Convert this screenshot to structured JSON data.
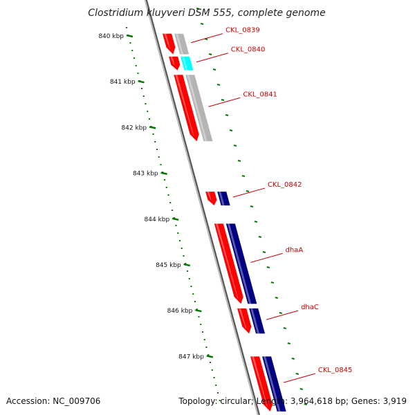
{
  "title": "Clostridium kluyveri DSM 555, complete genome",
  "footer": {
    "accession": "Accession: NC_009706",
    "summary": "Topology: circular; Length: 3,964,618 bp; Genes: 3,919"
  },
  "ruler_labels": [
    "840 kbp",
    "841 kbp",
    "842 kbp",
    "843 kbp",
    "844 kbp",
    "845 kbp",
    "846 kbp",
    "847 kbp"
  ],
  "colors": {
    "cds": "#ff0000",
    "gc_low": "#00ffff",
    "gc_neutral": "#b4b4b4",
    "gc_high": "#000080",
    "ruler": "#007700",
    "backbone": "#888888",
    "label": "#cc0000"
  },
  "genes": [
    {
      "name": "CKL_0839",
      "start": 839.95,
      "end": 840.4,
      "gc": "gc_neutral"
    },
    {
      "name": "CKL_0840",
      "start": 840.45,
      "end": 840.75,
      "gc": "gc_low"
    },
    {
      "name": "CKL_0841",
      "start": 840.85,
      "end": 842.3,
      "gc": "gc_neutral"
    },
    {
      "name": "CKL_0842",
      "start": 843.4,
      "end": 843.7,
      "gc": "gc_high"
    },
    {
      "name": "dhaA",
      "start": 844.1,
      "end": 845.85,
      "gc": "gc_high"
    },
    {
      "name": "dhaC",
      "start": 845.95,
      "end": 846.5,
      "gc": "gc_high"
    },
    {
      "name": "CKL_0845",
      "start": 847.0,
      "end": 848.2,
      "gc": "gc_high"
    }
  ]
}
